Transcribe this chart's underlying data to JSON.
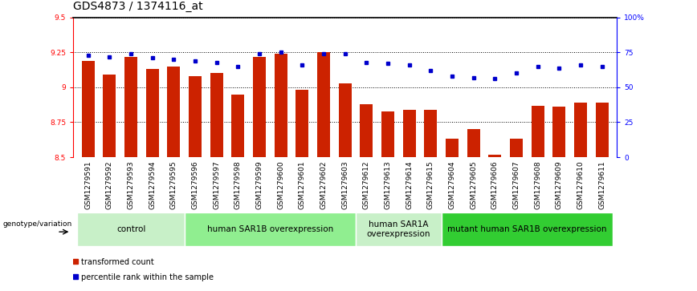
{
  "title": "GDS4873 / 1374116_at",
  "samples": [
    "GSM1279591",
    "GSM1279592",
    "GSM1279593",
    "GSM1279594",
    "GSM1279595",
    "GSM1279596",
    "GSM1279597",
    "GSM1279598",
    "GSM1279599",
    "GSM1279600",
    "GSM1279601",
    "GSM1279602",
    "GSM1279603",
    "GSM1279612",
    "GSM1279613",
    "GSM1279614",
    "GSM1279615",
    "GSM1279604",
    "GSM1279605",
    "GSM1279606",
    "GSM1279607",
    "GSM1279608",
    "GSM1279609",
    "GSM1279610",
    "GSM1279611"
  ],
  "bar_values": [
    9.19,
    9.09,
    9.22,
    9.13,
    9.15,
    9.08,
    9.1,
    8.95,
    9.22,
    9.24,
    8.98,
    9.25,
    9.03,
    8.88,
    8.83,
    8.84,
    8.84,
    8.63,
    8.7,
    8.52,
    8.63,
    8.87,
    8.86,
    8.89,
    8.89
  ],
  "percentile_values": [
    73,
    72,
    74,
    71,
    70,
    69,
    68,
    65,
    74,
    75,
    66,
    74,
    74,
    68,
    67,
    66,
    62,
    58,
    57,
    56,
    60,
    65,
    64,
    66,
    65
  ],
  "ylim_left": [
    8.5,
    9.5
  ],
  "ylim_right": [
    0,
    100
  ],
  "yticks_left": [
    8.5,
    8.75,
    9.0,
    9.25,
    9.5
  ],
  "yticks_right": [
    0,
    25,
    50,
    75,
    100
  ],
  "ytick_labels_left": [
    "8.5",
    "8.75",
    "9",
    "9.25",
    "9.5"
  ],
  "ytick_labels_right": [
    "0",
    "25",
    "50",
    "75",
    "100%"
  ],
  "groups": [
    {
      "label": "control",
      "start": 0,
      "end": 4,
      "color": "#c8f0c8"
    },
    {
      "label": "human SAR1B overexpression",
      "start": 5,
      "end": 12,
      "color": "#90ee90"
    },
    {
      "label": "human SAR1A\noverexpression",
      "start": 13,
      "end": 16,
      "color": "#c8f0c8"
    },
    {
      "label": "mutant human SAR1B overexpression",
      "start": 17,
      "end": 24,
      "color": "#32cd32"
    }
  ],
  "genotype_label": "genotype/variation",
  "bar_color": "#cc2200",
  "dot_color": "#0000cc",
  "grid_color": "#000000",
  "title_fontsize": 10,
  "tick_fontsize": 6.5,
  "group_fontsize": 7.5,
  "legend_fontsize": 7
}
